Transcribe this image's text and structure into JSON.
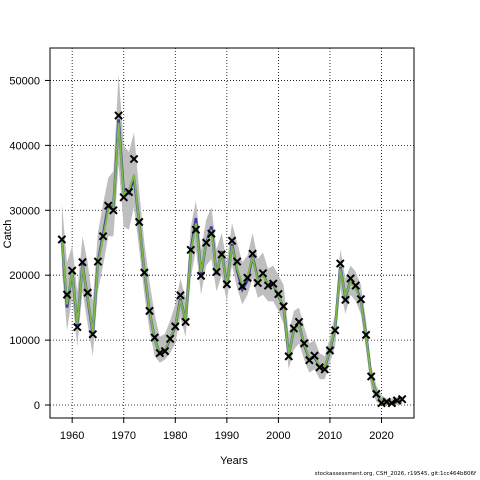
{
  "chart_data": {
    "type": "line",
    "xlabel": "Years",
    "ylabel": "Catch",
    "xlim": [
      1955.7,
      2026.3
    ],
    "ylim": [
      -2000,
      55000
    ],
    "xticks": [
      1960,
      1970,
      1980,
      1990,
      2000,
      2010,
      2020
    ],
    "yticks": [
      0,
      10000,
      20000,
      30000,
      40000,
      50000
    ],
    "grid": "dotted",
    "legend": "none",
    "colors": {
      "band": "#bebebe",
      "blue_line": "#3a3aa0",
      "green_line": "#7ab648",
      "observed": "#000000"
    },
    "years": [
      1958,
      1959,
      1960,
      1961,
      1962,
      1963,
      1964,
      1965,
      1966,
      1967,
      1968,
      1969,
      1970,
      1971,
      1972,
      1973,
      1974,
      1975,
      1976,
      1977,
      1978,
      1979,
      1980,
      1981,
      1982,
      1983,
      1984,
      1985,
      1986,
      1987,
      1988,
      1989,
      1990,
      1991,
      1992,
      1993,
      1994,
      1995,
      1996,
      1997,
      1998,
      1999,
      2000,
      2001,
      2002,
      2003,
      2004,
      2005,
      2006,
      2007,
      2008,
      2009,
      2010,
      2011,
      2012,
      2013,
      2014,
      2015,
      2016,
      2017,
      2018,
      2019,
      2020,
      2021,
      2022,
      2023,
      2024
    ],
    "observed": [
      25500,
      17000,
      20700,
      12000,
      22000,
      17300,
      10900,
      22100,
      26000,
      30700,
      30000,
      44600,
      32000,
      32800,
      37900,
      28200,
      20400,
      14500,
      10400,
      8000,
      8300,
      10200,
      12100,
      16900,
      12800,
      23900,
      27000,
      19900,
      25000,
      26400,
      20500,
      23200,
      18600,
      25300,
      22100,
      18300,
      19600,
      23300,
      18800,
      20300,
      18400,
      18700,
      17100,
      15200,
      7500,
      11800,
      12800,
      9500,
      6900,
      7600,
      5800,
      5500,
      8400,
      11500,
      21800,
      16200,
      19500,
      18400,
      16300,
      10800,
      4400,
      1700,
      300,
      500,
      300,
      700,
      900
    ],
    "fitted_green": [
      25200,
      15500,
      20500,
      12500,
      21500,
      16500,
      11200,
      21800,
      25800,
      30200,
      30500,
      43500,
      32500,
      33000,
      35500,
      28000,
      20600,
      14600,
      10000,
      8000,
      8500,
      10300,
      12200,
      16200,
      13000,
      23500,
      28000,
      20500,
      24800,
      27000,
      20300,
      23500,
      18500,
      24500,
      21000,
      18500,
      19800,
      22800,
      19200,
      20000,
      18600,
      18800,
      16900,
      15000,
      7800,
      11500,
      12300,
      9300,
      7200,
      7500,
      6000,
      5800,
      8600,
      11800,
      21000,
      16800,
      19000,
      18000,
      16000,
      10500,
      4200,
      1800,
      600,
      300,
      350,
      500,
      600
    ],
    "fitted_blue": [
      25300,
      15000,
      20600,
      12300,
      21700,
      16400,
      11000,
      22000,
      26200,
      30800,
      30400,
      44000,
      32800,
      32600,
      35000,
      28100,
      20500,
      14500,
      10100,
      7900,
      8400,
      10200,
      12100,
      16400,
      12900,
      23700,
      28800,
      20200,
      24900,
      27500,
      20100,
      23700,
      18400,
      24800,
      20700,
      17800,
      19200,
      22900,
      19400,
      20200,
      18500,
      18600,
      16800,
      15100,
      7700,
      11600,
      12400,
      9200,
      7100,
      7400,
      5900,
      5700,
      8500,
      11700,
      21300,
      16600,
      19200,
      18200,
      16100,
      10600,
      4300,
      1750,
      550,
      300,
      350,
      480,
      600
    ],
    "band_upper": [
      31000,
      22000,
      24500,
      17500,
      26000,
      22000,
      16000,
      26500,
      31000,
      35000,
      36000,
      51000,
      40000,
      39000,
      42000,
      33000,
      25000,
      19000,
      14000,
      10500,
      11000,
      13000,
      15500,
      19500,
      16500,
      27500,
      31500,
      24000,
      28500,
      30500,
      24000,
      26500,
      22000,
      28000,
      25000,
      22000,
      23000,
      26500,
      22500,
      23500,
      21000,
      21500,
      20000,
      18500,
      11000,
      14500,
      15000,
      12000,
      9500,
      10000,
      8000,
      7500,
      10500,
      14000,
      24000,
      19500,
      21500,
      20500,
      18500,
      13000,
      6000,
      3000,
      1500,
      1000,
      1000,
      1200,
      1400
    ],
    "band_lower": [
      21000,
      11500,
      16500,
      9000,
      17500,
      12500,
      7500,
      17500,
      21500,
      26000,
      26000,
      37000,
      27500,
      27000,
      30500,
      24000,
      17000,
      11500,
      7500,
      6500,
      7000,
      8000,
      9500,
      13500,
      10500,
      19500,
      24000,
      17000,
      21500,
      22500,
      17500,
      20000,
      16000,
      21500,
      18000,
      15500,
      17000,
      19500,
      16500,
      17000,
      16000,
      16000,
      14500,
      12500,
      5500,
      8500,
      9500,
      7000,
      5000,
      5500,
      4000,
      4000,
      6500,
      9000,
      18000,
      14000,
      17000,
      16000,
      14000,
      8500,
      2500,
      500,
      0,
      0,
      0,
      0,
      0
    ]
  },
  "credit_text": "stockassessment.org, CSH_2026, r19545, git:1cc464b806f"
}
